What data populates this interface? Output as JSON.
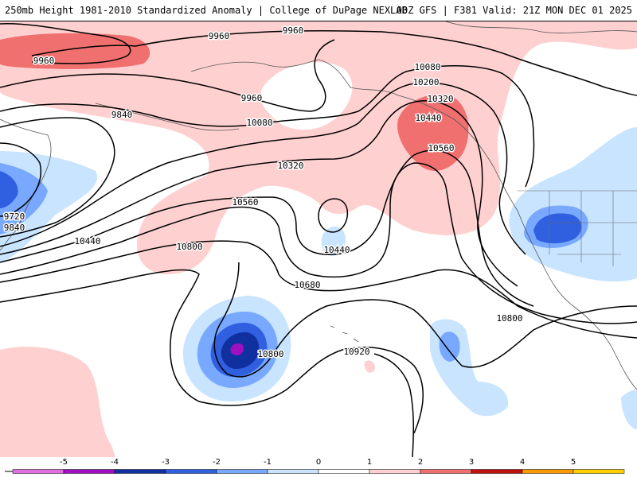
{
  "header": {
    "left_title": "250mb Height 1981-2010 Standardized Anomaly | College of DuPage NEXLAB",
    "right_title": "00Z GFS | F381 Valid: 21Z MON DEC 01 2025"
  },
  "contour_labels": [
    "9960",
    "9960",
    "9960",
    "9960",
    "9840",
    "9720",
    "9840",
    "10080",
    "10080",
    "10200",
    "10320",
    "10320",
    "10440",
    "10440",
    "10440",
    "10560",
    "10560",
    "10680",
    "10800",
    "10800",
    "10800",
    "10920"
  ],
  "legend": {
    "ticks": [
      "-5",
      "-4",
      "-3",
      "-2",
      "-1",
      "0",
      "1",
      "2",
      "3",
      "4",
      "5"
    ],
    "colors": [
      "#e070e0",
      "#a010c0",
      "#1030a0",
      "#3060e0",
      "#78a8ff",
      "#c8e4ff",
      "#ffffff",
      "#ffd0d0",
      "#f07070",
      "#c01010",
      "#ff9a00",
      "#ffd000"
    ]
  }
}
